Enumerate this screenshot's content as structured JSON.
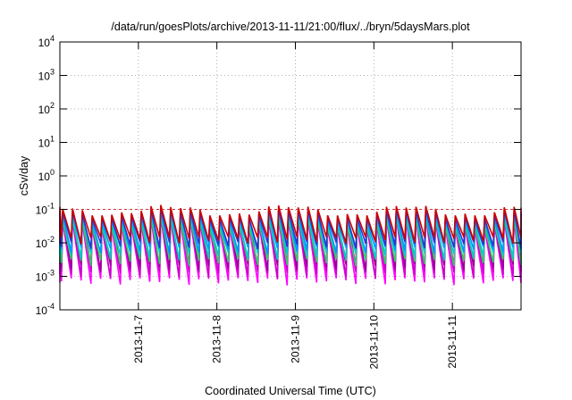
{
  "chart_data": {
    "type": "line",
    "title": "/data/run/goesPlots/archive/2013-11-11/21:00/flux/../bryn/5daysMars.plot",
    "xlabel": "Coordinated Universal Time (UTC)",
    "ylabel": "cSv/day",
    "y_scale": "log",
    "ylim": [
      0.0001,
      10000
    ],
    "y_ticks": [
      {
        "base": "10",
        "exp": "-4"
      },
      {
        "base": "10",
        "exp": "-3"
      },
      {
        "base": "10",
        "exp": "-2"
      },
      {
        "base": "10",
        "exp": "-1"
      },
      {
        "base": "10",
        "exp": "0"
      },
      {
        "base": "10",
        "exp": "1"
      },
      {
        "base": "10",
        "exp": "2"
      },
      {
        "base": "10",
        "exp": "3"
      },
      {
        "base": "10",
        "exp": "4"
      }
    ],
    "xlim": [
      "2013-11-06 00:00",
      "2013-11-11 21:00"
    ],
    "x_ticks": [
      "2013-11-7",
      "2013-11-8",
      "2013-11-9",
      "2013-11-10",
      "2013-11-11"
    ],
    "grid": true,
    "legend": "none",
    "period_hours": 3,
    "reference_level": 0.1,
    "series": [
      {
        "color": "#ff00ff",
        "peak": 0.048,
        "trough": 0.0007
      },
      {
        "color": "#cc00cc",
        "peak": 0.062,
        "trough": 0.0011
      },
      {
        "color": "#990099",
        "peak": 0.072,
        "trough": 0.0018
      },
      {
        "color": "#33cc66",
        "peak": 0.05,
        "trough": 0.0026
      },
      {
        "color": "#00cccc",
        "peak": 0.062,
        "trough": 0.004
      },
      {
        "color": "#0099ff",
        "peak": 0.075,
        "trough": 0.006
      },
      {
        "color": "#3333cc",
        "peak": 0.088,
        "trough": 0.0085
      },
      {
        "color": "#cc0000",
        "peak": 0.11,
        "trough": 0.012
      }
    ]
  }
}
